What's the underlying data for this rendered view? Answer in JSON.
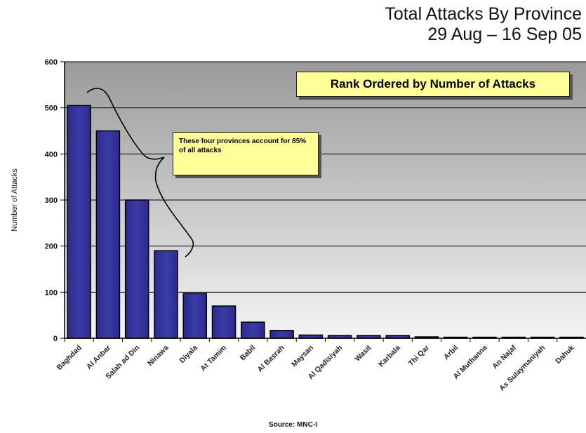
{
  "title_line1": "Total Attacks By Province",
  "title_line2": "29 Aug – 16 Sep 05",
  "source": "Source:  MNC-I",
  "colors": {
    "bar": "#3b3ba6",
    "bar_edge": "#000000",
    "annotation_fill": "#ffff99"
  },
  "chart_data": {
    "type": "bar",
    "title": "Total Attacks By Province",
    "subtitle": "29 Aug – 16 Sep 05",
    "xlabel": "",
    "ylabel": "Number of Attacks",
    "ylim": [
      0,
      600
    ],
    "yticks": [
      0,
      100,
      200,
      300,
      400,
      500,
      600
    ],
    "grid": true,
    "categories": [
      "Baghdad",
      "Al Anbar",
      "Salah ad Din",
      "Ninawa",
      "Diyala",
      "At Tamim",
      "Babil",
      "Al Basrah",
      "Maysan",
      "Al Qadisiyah",
      "Wasit",
      "Karbala",
      "Thi Qar",
      "Arbil",
      "Al Muthanna",
      "An Najaf",
      "As Sulaymaniyah",
      "Dahuk"
    ],
    "values": [
      505,
      450,
      300,
      190,
      97,
      70,
      35,
      17,
      7,
      6,
      6,
      6,
      3,
      2,
      1,
      1,
      1,
      1
    ],
    "annotations": [
      "Rank Ordered by Number of Attacks",
      "These four provinces account for 85% of all attacks"
    ]
  }
}
